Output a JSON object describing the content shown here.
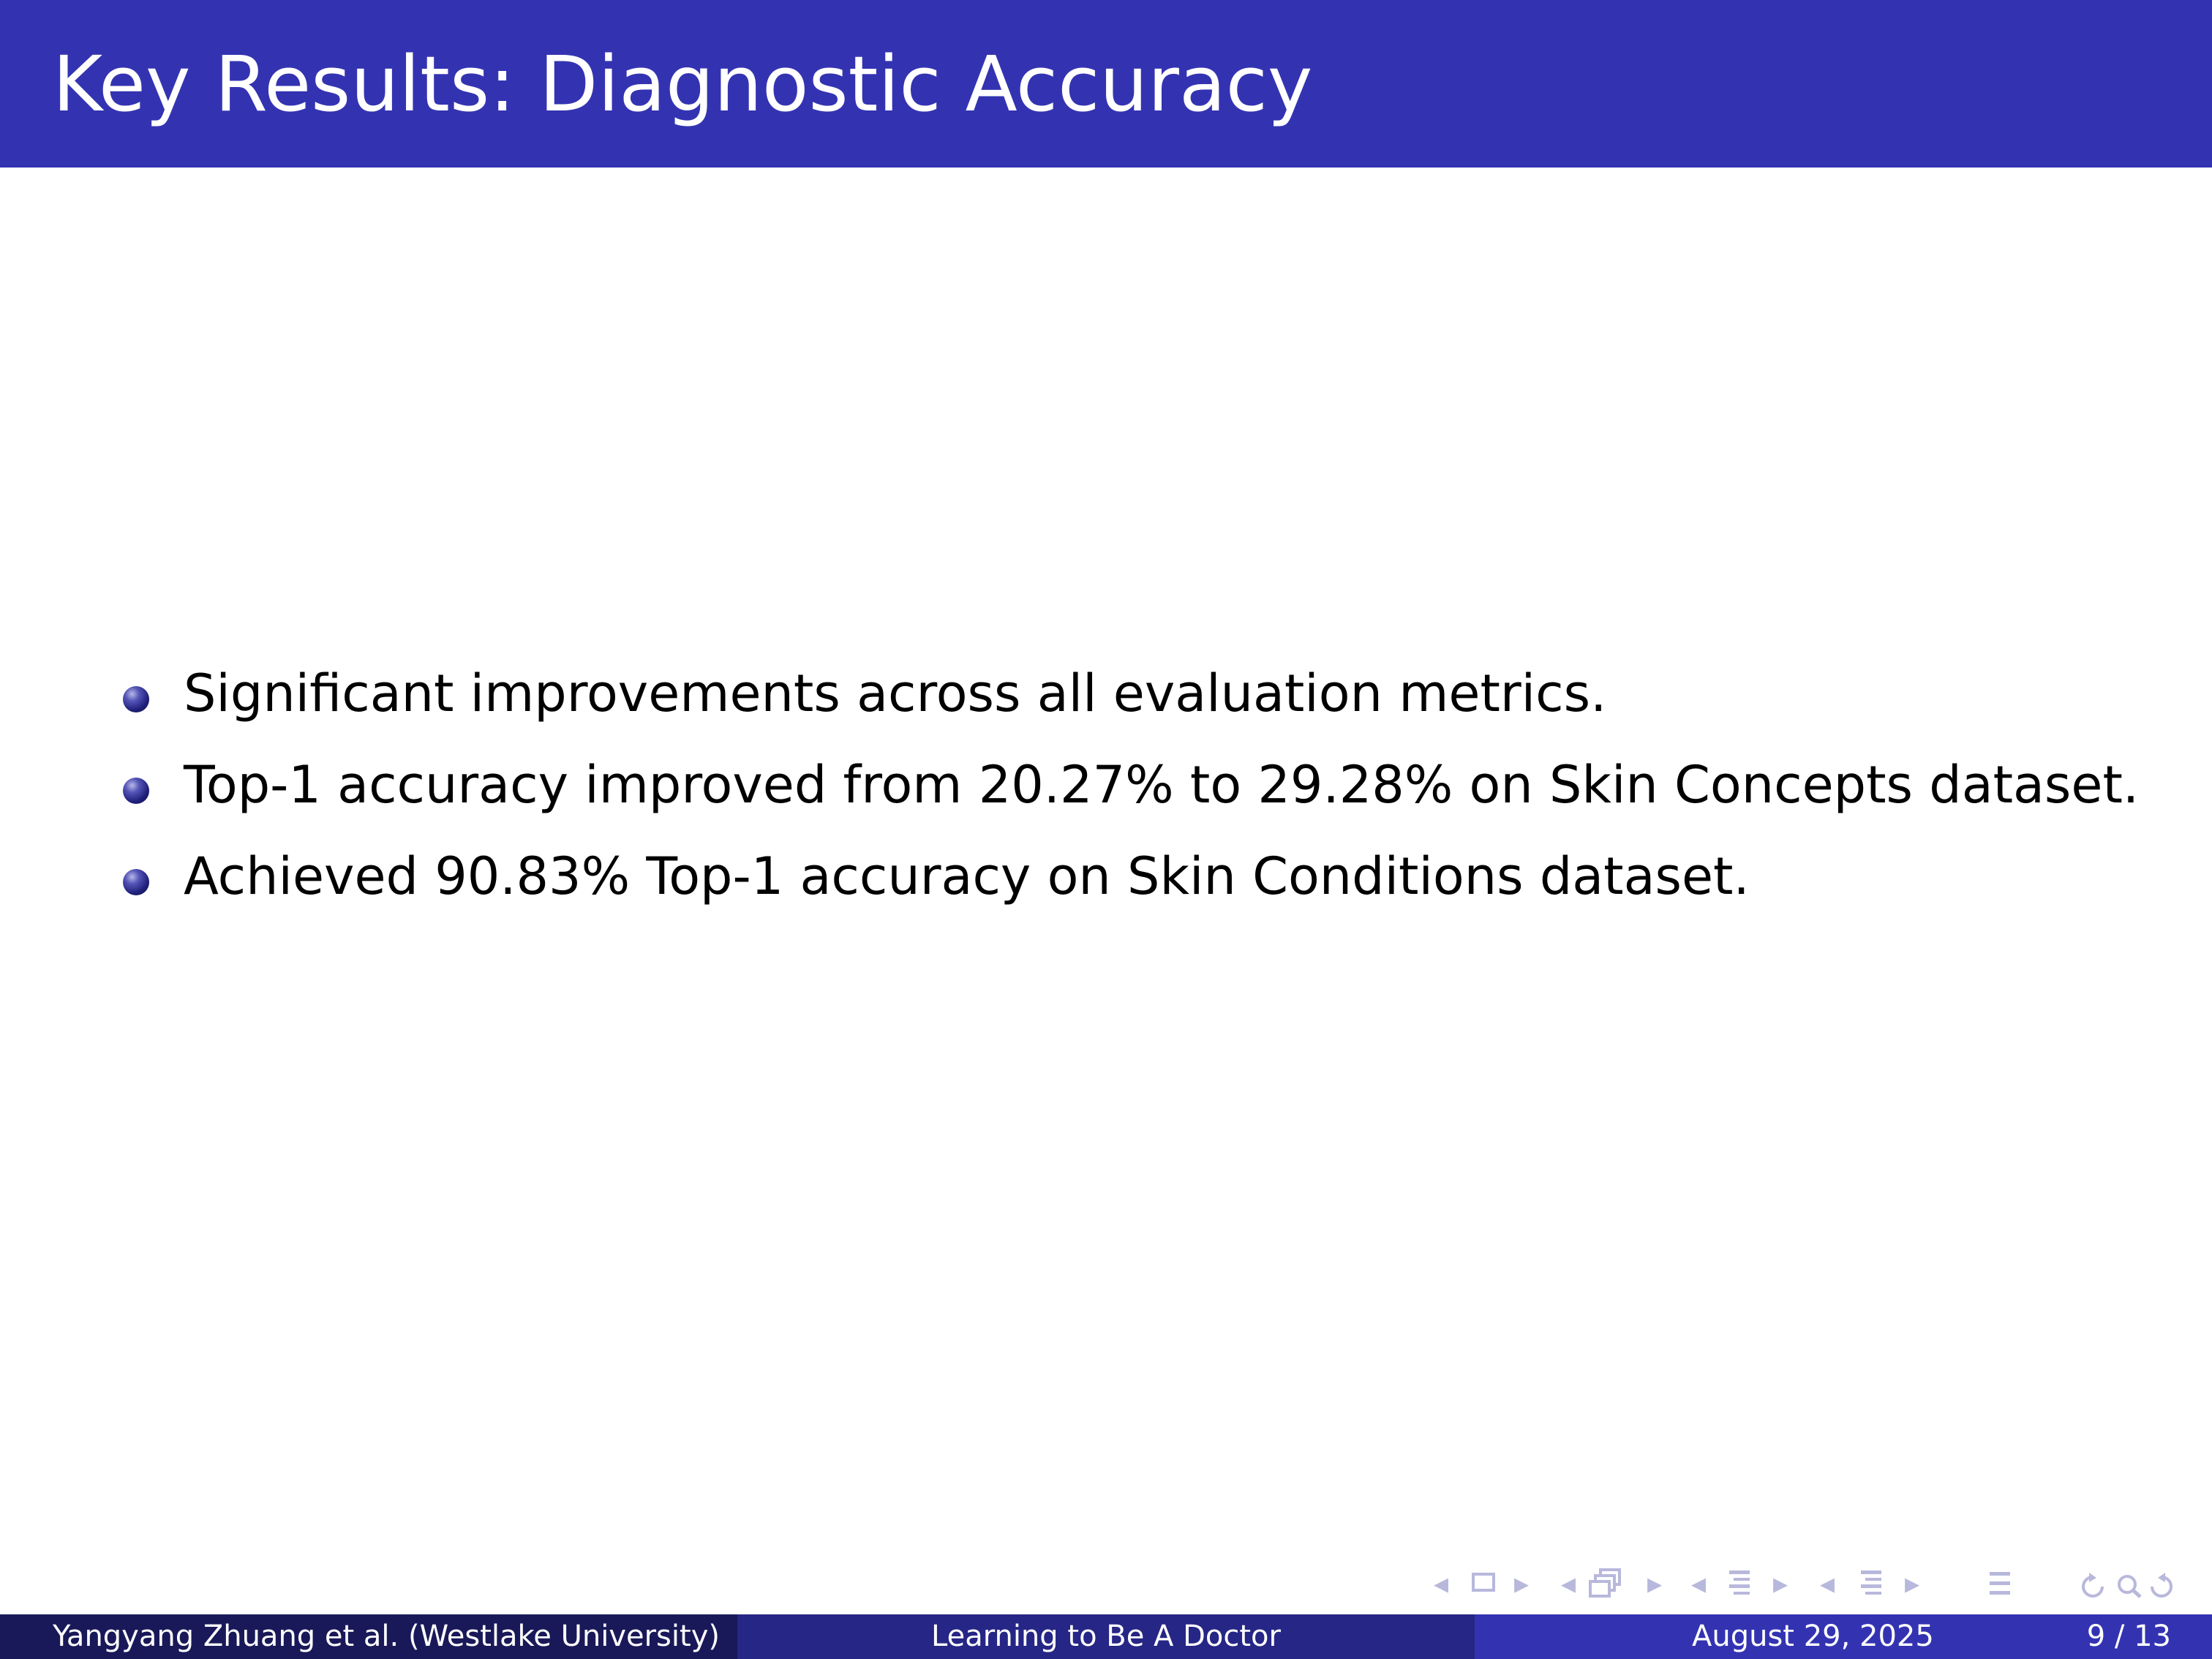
{
  "slide": {
    "title": "Key Results: Diagnostic Accuracy",
    "colors": {
      "title_bar": "#3333b2",
      "footer_left": "#191959",
      "footer_mid": "#262686",
      "footer_right": "#3333b2",
      "nav_icons": "#b8b8dc"
    }
  },
  "bullets": [
    "Significant improvements across all evaluation metrics.",
    "Top-1 accuracy improved from 20.27% to 29.28% on Skin Concepts dataset.",
    "Achieved 90.83% Top-1 accuracy on Skin Conditions dataset."
  ],
  "footer": {
    "author": "Yangyang Zhuang et al.  (Westlake University)",
    "talk_title": "Learning to Be A Doctor",
    "date": "August 29, 2025",
    "page": "9 / 13"
  },
  "navigation": [
    "prev-arrow-icon",
    "frame-icon",
    "next-arrow-icon",
    "prev-arrow-icon",
    "subsection-icon",
    "next-arrow-icon",
    "prev-arrow-icon",
    "section-icon",
    "next-arrow-icon",
    "prev-arrow-icon",
    "document-icon",
    "next-arrow-icon",
    "toc-icon",
    "undo-icon",
    "search-icon",
    "redo-icon"
  ]
}
